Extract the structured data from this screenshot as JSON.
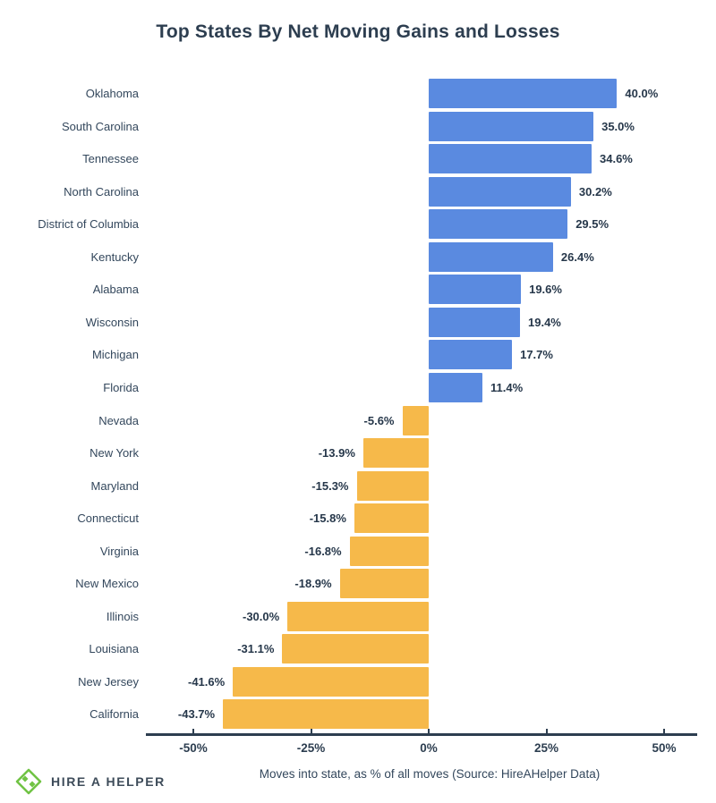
{
  "title": "Top States By Net Moving Gains and Losses",
  "chart_data": {
    "type": "bar",
    "orientation": "horizontal",
    "title": "Top States By Net Moving Gains and Losses",
    "xlabel": "Moves into state, as % of all moves (Source: HireAHelper Data)",
    "categories": [
      "Oklahoma",
      "South Carolina",
      "Tennessee",
      "North Carolina",
      "District of Columbia",
      "Kentucky",
      "Alabama",
      "Wisconsin",
      "Michigan",
      "Florida",
      "Nevada",
      "New York",
      "Maryland",
      "Connecticut",
      "Virginia",
      "New Mexico",
      "Illinois",
      "Louisiana",
      "New Jersey",
      "California"
    ],
    "values": [
      40.0,
      35.0,
      34.6,
      30.2,
      29.5,
      26.4,
      19.6,
      19.4,
      17.7,
      11.4,
      -5.6,
      -13.9,
      -15.3,
      -15.8,
      -16.8,
      -18.9,
      -30.0,
      -31.1,
      -41.6,
      -43.7
    ],
    "value_labels": [
      "40.0%",
      "35.0%",
      "34.6%",
      "30.2%",
      "29.5%",
      "26.4%",
      "19.6%",
      "19.4%",
      "17.7%",
      "11.4%",
      "-5.6%",
      "-13.9%",
      "-15.3%",
      "-15.8%",
      "-16.8%",
      "-18.9%",
      "-30.0%",
      "-31.1%",
      "-41.6%",
      "-43.7%"
    ],
    "x_ticks": [
      {
        "value": -50,
        "label": "-50%"
      },
      {
        "value": -25,
        "label": "-25%"
      },
      {
        "value": 0,
        "label": "0%"
      },
      {
        "value": 25,
        "label": "25%"
      },
      {
        "value": 50,
        "label": "50%"
      }
    ],
    "xlim": [
      -60,
      57
    ],
    "grid": false,
    "legend": "none",
    "positive_color": "#5a8ae0",
    "negative_color": "#f6b94a",
    "axis_color": "#2d3e50",
    "label_color": "#33475c",
    "value_label_color": "#26374a"
  },
  "footer": {
    "logo_text": "HIRE A HELPER",
    "logo_color": "#70c344"
  }
}
